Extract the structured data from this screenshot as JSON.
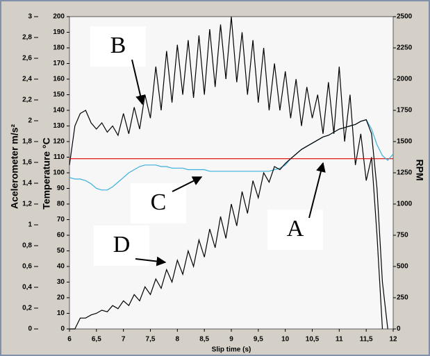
{
  "chart_data": {
    "type": "line",
    "x_label": "Slip time (s)",
    "y_label": "Temperature °C",
    "y2_label": "RPM",
    "y3_label": "Acelerometer m/s²",
    "annotations": [
      "A",
      "B",
      "C",
      "D"
    ],
    "x": [
      6.0,
      6.1,
      6.2,
      6.3,
      6.4,
      6.5,
      6.6,
      6.7,
      6.8,
      6.9,
      7.0,
      7.1,
      7.2,
      7.3,
      7.4,
      7.5,
      7.6,
      7.7,
      7.8,
      7.9,
      8.0,
      8.1,
      8.2,
      8.3,
      8.4,
      8.5,
      8.6,
      8.7,
      8.8,
      8.9,
      9.0,
      9.1,
      9.2,
      9.3,
      9.4,
      9.5,
      9.6,
      9.7,
      9.8,
      9.9,
      10.0,
      10.1,
      10.2,
      10.3,
      10.4,
      10.5,
      10.6,
      10.7,
      10.8,
      10.9,
      11.0,
      11.1,
      11.2,
      11.3,
      11.4,
      11.5,
      11.6,
      11.7,
      11.8,
      11.9,
      12.0
    ],
    "series": [
      {
        "color": "#000000",
        "values": [
          105,
          130,
          138,
          140,
          132,
          128,
          132,
          126,
          130,
          124,
          138,
          125,
          142,
          128,
          150,
          135,
          168,
          140,
          178,
          145,
          182,
          150,
          185,
          148,
          188,
          150,
          192,
          155,
          195,
          160,
          200,
          158,
          190,
          150,
          185,
          145,
          180,
          140,
          170,
          140,
          165,
          135,
          160,
          130,
          155,
          135,
          150,
          125,
          158,
          125,
          168,
          120,
          150,
          105,
          125,
          95,
          110,
          60,
          0,
          null,
          null
        ]
      },
      {
        "color": "#e00000",
        "values": [
          109,
          109,
          109,
          109,
          109,
          109,
          109,
          109,
          109,
          109,
          109,
          109,
          109,
          109,
          109,
          109,
          109,
          109,
          109,
          109,
          109,
          109,
          109,
          109,
          109,
          109,
          109,
          109,
          109,
          109,
          109,
          109,
          109,
          109,
          109,
          109,
          109,
          109,
          109,
          109,
          109,
          109,
          109,
          109,
          109,
          109,
          109,
          109,
          109,
          109,
          109,
          109,
          109,
          109,
          109,
          109,
          109,
          109,
          109,
          109,
          109
        ]
      },
      {
        "color": "#3ab0e0",
        "values": [
          97,
          96,
          96,
          95,
          93,
          90,
          89,
          89,
          91,
          94,
          97,
          100,
          102,
          104,
          105,
          105,
          105,
          104,
          104,
          103,
          103,
          103,
          102,
          102,
          102,
          102,
          101,
          101,
          101,
          101,
          101,
          101,
          101,
          101,
          101,
          101,
          101,
          101,
          102,
          103,
          105,
          109,
          112,
          115,
          117,
          119,
          121,
          123,
          124,
          126,
          128,
          129,
          130,
          131,
          133,
          134,
          128,
          118,
          111,
          108,
          112
        ]
      },
      {
        "color": "#000000",
        "values": [
          0,
          0,
          7,
          7,
          9,
          10,
          12,
          11,
          15,
          13,
          18,
          15,
          22,
          18,
          27,
          22,
          32,
          26,
          38,
          30,
          44,
          35,
          50,
          40,
          57,
          46,
          64,
          52,
          72,
          58,
          80,
          66,
          88,
          74,
          95,
          84,
          100,
          94,
          104,
          102,
          106,
          109,
          112,
          115,
          117,
          119,
          121,
          123,
          124,
          126,
          128,
          129,
          130,
          131,
          133,
          134,
          125,
          90,
          30,
          0,
          null
        ]
      }
    ],
    "xlim": [
      6,
      12
    ],
    "xticks": [
      6,
      {
        "value": 6.5,
        "label": "6,5"
      },
      7,
      {
        "value": 7.5,
        "label": "7,5"
      },
      8,
      {
        "value": 8.5,
        "label": "8,5"
      },
      9,
      {
        "value": 9.5,
        "label": "9,5"
      },
      10,
      {
        "value": 10.5,
        "label": "10,5"
      },
      11,
      {
        "value": 11.5,
        "label": "11,5"
      },
      12
    ],
    "ylim": [
      0,
      200
    ],
    "yticks": [
      0,
      10,
      20,
      30,
      40,
      50,
      60,
      70,
      80,
      90,
      100,
      110,
      120,
      130,
      140,
      150,
      160,
      170,
      180,
      190,
      200
    ],
    "y2lim": [
      0,
      2500
    ],
    "y2ticks": [
      0,
      250,
      500,
      750,
      1000,
      1250,
      1500,
      1750,
      2000,
      2250,
      2500
    ],
    "y3lim": [
      0,
      3
    ],
    "y3ticks": [
      0,
      {
        "value": 0.2,
        "label": "0,2"
      },
      {
        "value": 0.4,
        "label": "0,4"
      },
      {
        "value": 0.6,
        "label": "0,6"
      },
      {
        "value": 0.8,
        "label": "0,8"
      },
      1,
      {
        "value": 1.2,
        "label": "1,2"
      },
      {
        "value": 1.4,
        "label": "1,4"
      },
      {
        "value": 1.6,
        "label": "1,6"
      },
      {
        "value": 1.8,
        "label": "1,8"
      },
      2,
      {
        "value": 2.2,
        "label": "2,2"
      },
      {
        "value": 2.4,
        "label": "2,4"
      },
      {
        "value": 2.6,
        "label": "2,6"
      },
      {
        "value": 2.8,
        "label": "2,8"
      },
      3
    ]
  }
}
